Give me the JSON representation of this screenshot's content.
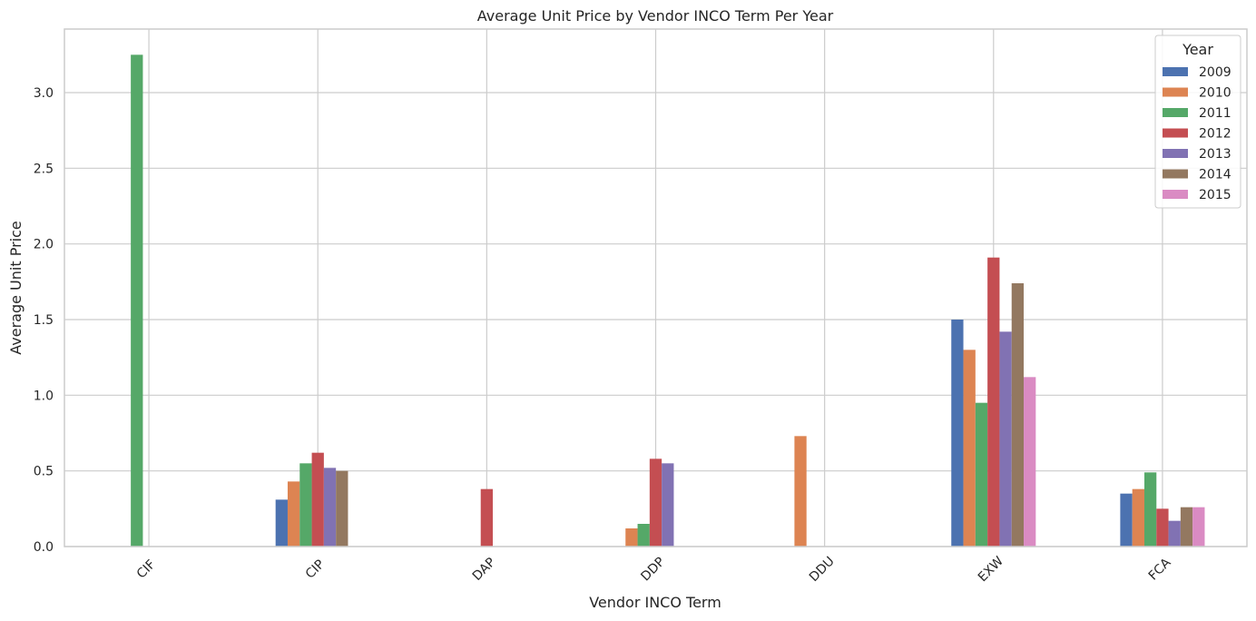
{
  "chart_data": {
    "type": "bar",
    "title": "Average Unit Price by Vendor INCO Term Per Year",
    "xlabel": "Vendor INCO Term",
    "ylabel": "Average Unit Price",
    "categories": [
      "CIF",
      "CIP",
      "DAP",
      "DDP",
      "DDU",
      "EXW",
      "FCA"
    ],
    "ylim": [
      0,
      3.42
    ],
    "yticks": [
      0.0,
      0.5,
      1.0,
      1.5,
      2.0,
      2.5,
      3.0
    ],
    "ytick_labels": [
      "0.0",
      "0.5",
      "1.0",
      "1.5",
      "2.0",
      "2.5",
      "3.0"
    ],
    "grid": true,
    "legend": {
      "title": "Year",
      "position": "top-right"
    },
    "series": [
      {
        "name": "2009",
        "color": "#4c72b0",
        "values": [
          null,
          0.31,
          null,
          null,
          null,
          1.5,
          0.35
        ]
      },
      {
        "name": "2010",
        "color": "#dd8452",
        "values": [
          null,
          0.43,
          null,
          0.12,
          0.73,
          1.3,
          0.38
        ]
      },
      {
        "name": "2011",
        "color": "#55a868",
        "values": [
          3.25,
          0.55,
          null,
          0.15,
          null,
          0.95,
          0.49
        ]
      },
      {
        "name": "2012",
        "color": "#c44e52",
        "values": [
          null,
          0.62,
          0.38,
          0.58,
          null,
          1.91,
          0.25
        ]
      },
      {
        "name": "2013",
        "color": "#8172b3",
        "values": [
          null,
          0.52,
          null,
          0.55,
          null,
          1.42,
          0.17
        ]
      },
      {
        "name": "2014",
        "color": "#937860",
        "values": [
          null,
          0.5,
          null,
          null,
          null,
          1.74,
          0.26
        ]
      },
      {
        "name": "2015",
        "color": "#da8bc3",
        "values": [
          null,
          null,
          null,
          null,
          null,
          1.12,
          0.26
        ]
      }
    ]
  }
}
